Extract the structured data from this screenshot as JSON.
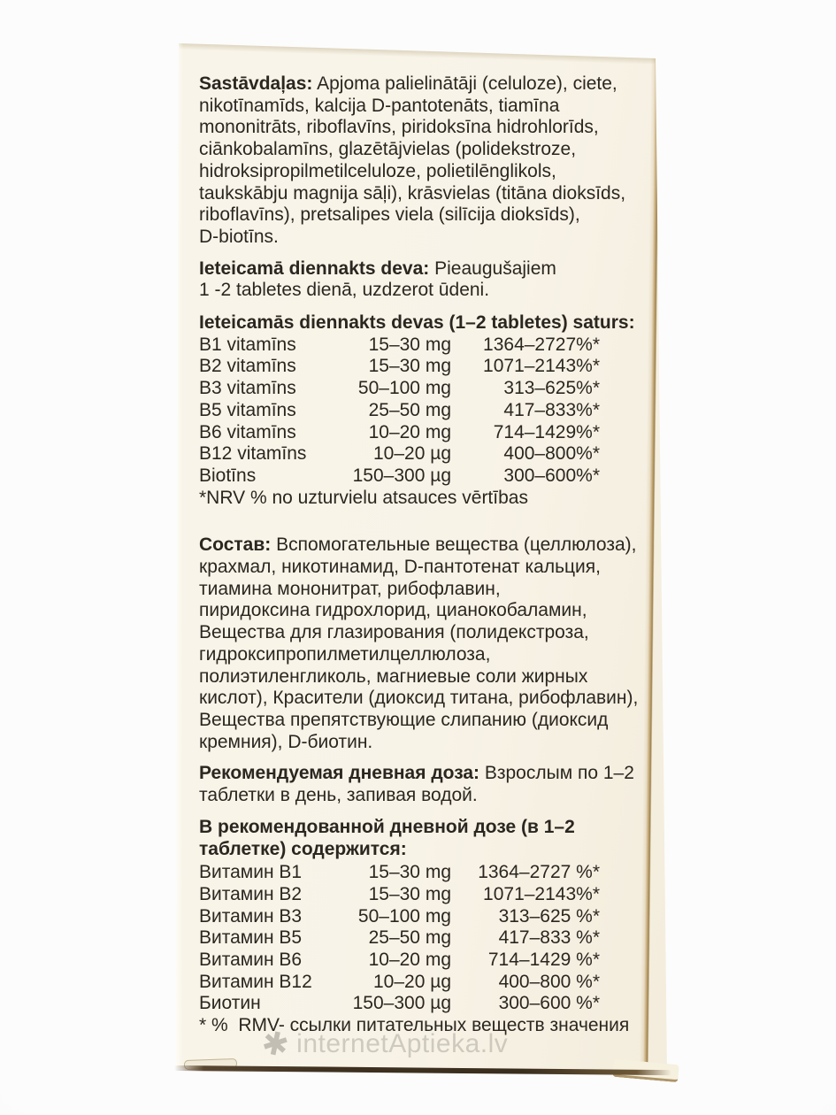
{
  "colors": {
    "background": "#fcfcfc",
    "panel": "#f8f3e7",
    "text": "#2b2620",
    "box_edge_line": "#3e3120",
    "box_edge_right": "#c4a876",
    "watermark": "#b6b1a6"
  },
  "latvian": {
    "ingredients_label": "Sastāvdaļas:",
    "ingredients_lines": [
      " Apjoma palielinātāji (celuloze), ciete,",
      "nikotīnamīds, kalcija D-pantotenāts, tiamīna",
      "mononitrāts, riboflavīns, piridoksīna hidrohlorīds,",
      "ciānkobalamīns, glazētājvielas (polidekstroze,",
      "hidroksipropilmetilceluloze, polietilēnglikols,",
      "taukskābju magnija sāļi), krāsvielas (titāna dioksīds,",
      "riboflavīns), pretsalipes viela (silīcija dioksīds),",
      "D-biotīns."
    ],
    "dose_label": "Ieteicamā diennakts deva:",
    "dose_lines": [
      " Pieaugušajiem",
      "1 -2 tabletes dienā, uzdzerot ūdeni."
    ],
    "table_heading": "Ieteicamās diennakts devas (1–2 tabletes) saturs:",
    "table_rows": [
      {
        "name": "B1 vitamīns",
        "amount": "15–30 mg",
        "nrv": "1364–2727%*"
      },
      {
        "name": "B2 vitamīns",
        "amount": "15–30 mg",
        "nrv": "1071–2143%*"
      },
      {
        "name": "B3 vitamīns",
        "amount": "50–100 mg",
        "nrv": "313–625%*"
      },
      {
        "name": "B5 vitamīns",
        "amount": "25–50 mg",
        "nrv": "417–833%*"
      },
      {
        "name": "B6 vitamīns",
        "amount": "10–20 mg",
        "nrv": "714–1429%*"
      },
      {
        "name": "B12 vitamīns",
        "amount": "10–20 µg",
        "nrv": "400–800%*"
      },
      {
        "name": "Biotīns",
        "amount": "150–300 µg",
        "nrv": "300–600%*"
      }
    ],
    "table_footnote": "*NRV % no uzturvielu atsauces vērtības"
  },
  "russian": {
    "ingredients_label": "Состав:",
    "ingredients_lines": [
      " Вспомогательные вещества (целлюлоза),",
      "крахмал, никотинамид, D-пантотенат кальция,",
      "тиамина мононитрат, рибофлавин,",
      "пиридоксина гидрохлорид, цианокобаламин,",
      "Вещества для глазирования (полидекстроза,",
      "гидроксипропилметилцеллюлоза,",
      "полиэтиленгликоль, магниевые соли жирных",
      "кислот), Красители (диоксид титана, рибофлавин),",
      "Вещества препятствующие слипанию (диоксид",
      "кремния), D-биотин."
    ],
    "dose_label": "Рекомендуемая дневная доза:",
    "dose_lines": [
      " Взрослым по 1–2",
      "таблетки в день, запивая водой."
    ],
    "table_heading_lines": [
      "В рекомендованной дневной дозе (в 1–2",
      "таблетке) содержится:"
    ],
    "table_rows": [
      {
        "name": "Витамин B1",
        "amount": "15–30 mg",
        "nrv": "1364–2727 %*"
      },
      {
        "name": "Витамин B2",
        "amount": "15–30 mg",
        "nrv": "1071–2143%*"
      },
      {
        "name": "Витамин B3",
        "amount": "50–100 mg",
        "nrv": "313–625 %*"
      },
      {
        "name": "Витамин B5",
        "amount": "25–50 mg",
        "nrv": "417–833 %*"
      },
      {
        "name": "Витамин B6",
        "amount": "10–20 mg",
        "nrv": "714–1429 %*"
      },
      {
        "name": "Витамин B12",
        "amount": "10–20 µg",
        "nrv": "400–800 %*"
      },
      {
        "name": "Биотин",
        "amount": "150–300 µg",
        "nrv": "300–600 %*"
      }
    ],
    "table_footnote": "* %  RMV- ссылки питательных веществ значения"
  },
  "watermark": {
    "icon": "aptieka-flower-icon",
    "icon_glyph": "✱",
    "text": "internetAptieka.lv"
  }
}
